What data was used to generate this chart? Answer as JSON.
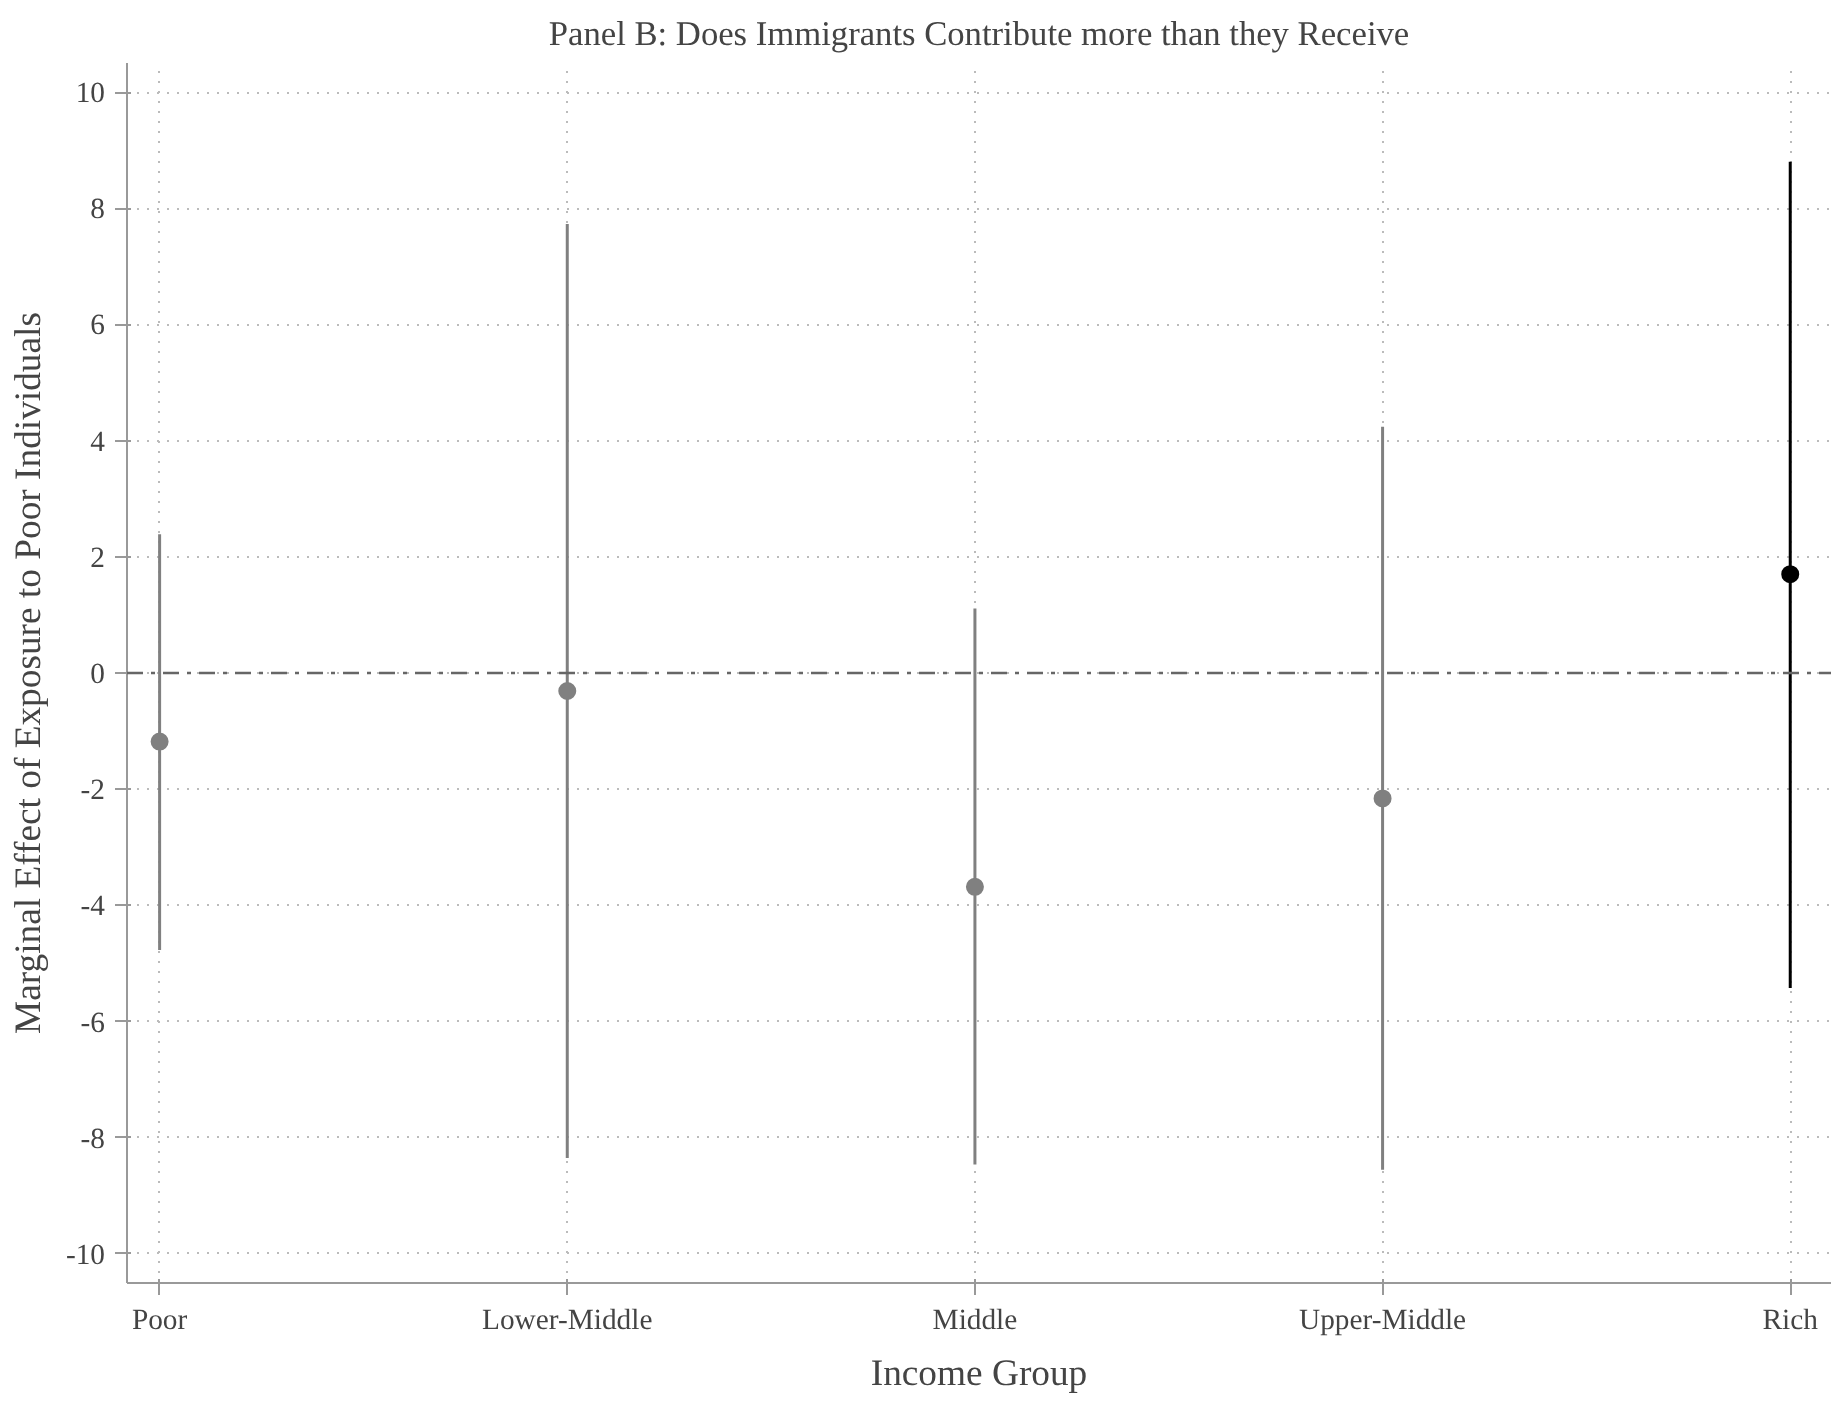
{
  "chart_data": {
    "type": "scatter",
    "title": "Panel B: Does Immigrants Contribute more than they Receive",
    "xlabel": "Income Group",
    "ylabel": "Marginal Effect of Exposure to Poor Individuals",
    "categories": [
      "Poor",
      "Lower-Middle",
      "Middle",
      "Upper-Middle",
      "Rich"
    ],
    "series": [
      {
        "color": "#808080",
        "values": [
          -1.18,
          -0.31,
          -3.68,
          -2.16,
          null
        ],
        "errors": [
          [
            -4.77,
            2.39
          ],
          [
            -8.35,
            7.73
          ],
          [
            -8.46,
            1.11
          ],
          [
            -8.55,
            4.24
          ],
          null
        ]
      },
      {
        "color": "#000000",
        "values": [
          null,
          null,
          null,
          null,
          1.7
        ],
        "errors": [
          null,
          null,
          null,
          null,
          [
            -5.42,
            8.8
          ]
        ]
      }
    ],
    "ylim": [
      -10.5,
      10.5
    ],
    "yticks": [
      -10,
      -8,
      -6,
      -4,
      -2,
      0,
      2,
      4,
      6,
      8,
      10
    ],
    "ref_lines": [
      {
        "axis": "y",
        "value": 0,
        "color": "#666666",
        "line_style": "dashed"
      }
    ],
    "grid": true,
    "marker": "circle"
  }
}
